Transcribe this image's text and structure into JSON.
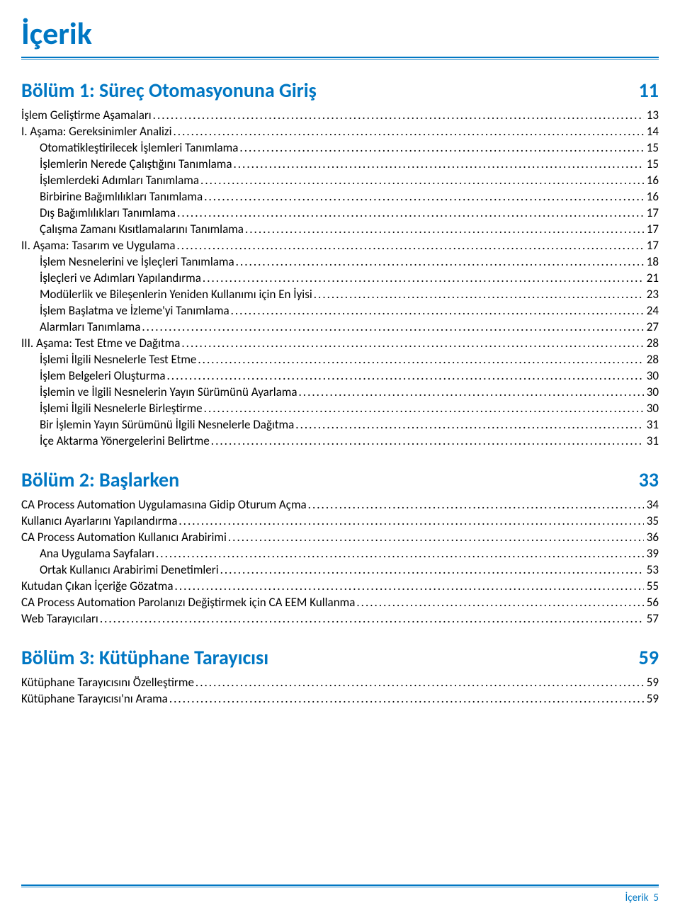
{
  "colors": {
    "accent": "#0077c3",
    "rule": "#0077c3",
    "text": "#000000"
  },
  "page_title": "İçerik",
  "footer": {
    "label": "İçerik",
    "pagenum": "5"
  },
  "chapters": [
    {
      "heading": "Bölüm 1: Süreç Otomasyonuna Giriş",
      "page": "11",
      "entries": [
        {
          "indent": 0,
          "text": "İşlem Geliştirme Aşamaları",
          "page": "13"
        },
        {
          "indent": 0,
          "text": "I. Aşama: Gereksinimler Analizi",
          "page": "14"
        },
        {
          "indent": 1,
          "text": "Otomatikleştirilecek İşlemleri Tanımlama",
          "page": "15"
        },
        {
          "indent": 1,
          "text": "İşlemlerin Nerede Çalıştığını Tanımlama",
          "page": "15"
        },
        {
          "indent": 1,
          "text": "İşlemlerdeki Adımları Tanımlama",
          "page": "16"
        },
        {
          "indent": 1,
          "text": "Birbirine Bağımlılıkları Tanımlama",
          "page": "16"
        },
        {
          "indent": 1,
          "text": "Dış Bağımlılıkları Tanımlama",
          "page": "17"
        },
        {
          "indent": 1,
          "text": "Çalışma Zamanı Kısıtlamalarını Tanımlama",
          "page": "17"
        },
        {
          "indent": 0,
          "text": "II. Aşama: Tasarım ve Uygulama",
          "page": "17"
        },
        {
          "indent": 1,
          "text": "İşlem Nesnelerini ve İşleçleri Tanımlama",
          "page": "18"
        },
        {
          "indent": 1,
          "text": "İşleçleri ve Adımları Yapılandırma",
          "page": "21"
        },
        {
          "indent": 1,
          "text": "Modülerlik ve Bileşenlerin Yeniden Kullanımı için En İyisi",
          "page": "23"
        },
        {
          "indent": 1,
          "text": "İşlem Başlatma ve İzleme'yi Tanımlama",
          "page": "24"
        },
        {
          "indent": 1,
          "text": "Alarmları Tanımlama",
          "page": "27"
        },
        {
          "indent": 0,
          "text": "III. Aşama: Test Etme ve Dağıtma",
          "page": "28"
        },
        {
          "indent": 1,
          "text": "İşlemi İlgili Nesnelerle Test Etme",
          "page": "28"
        },
        {
          "indent": 1,
          "text": "İşlem Belgeleri Oluşturma",
          "page": "30"
        },
        {
          "indent": 1,
          "text": "İşlemin ve İlgili Nesnelerin Yayın Sürümünü Ayarlama",
          "page": "30"
        },
        {
          "indent": 1,
          "text": "İşlemi İlgili Nesnelerle Birleştirme",
          "page": "30"
        },
        {
          "indent": 1,
          "text": "Bir İşlemin Yayın Sürümünü İlgili Nesnelerle Dağıtma",
          "page": "31"
        },
        {
          "indent": 1,
          "text": "İçe Aktarma Yönergelerini Belirtme",
          "page": "31"
        }
      ]
    },
    {
      "heading": "Bölüm 2: Başlarken",
      "page": "33",
      "entries": [
        {
          "indent": 0,
          "text": "CA Process Automation Uygulamasına Gidip Oturum Açma",
          "page": "34"
        },
        {
          "indent": 0,
          "text": "Kullanıcı Ayarlarını Yapılandırma",
          "page": "35"
        },
        {
          "indent": 0,
          "text": "CA Process Automation Kullanıcı Arabirimi",
          "page": "36"
        },
        {
          "indent": 1,
          "text": "Ana Uygulama Sayfaları",
          "page": "39"
        },
        {
          "indent": 1,
          "text": "Ortak Kullanıcı Arabirimi Denetimleri",
          "page": "53"
        },
        {
          "indent": 0,
          "text": "Kutudan Çıkan İçeriğe Gözatma",
          "page": "55"
        },
        {
          "indent": 0,
          "text": "CA Process Automation Parolanızı Değiştirmek için CA EEM Kullanma",
          "page": "56"
        },
        {
          "indent": 0,
          "text": "Web Tarayıcıları",
          "page": "57"
        }
      ]
    },
    {
      "heading": "Bölüm 3: Kütüphane Tarayıcısı",
      "page": "59",
      "entries": [
        {
          "indent": 0,
          "text": "Kütüphane Tarayıcısını Özelleştirme",
          "page": "59"
        },
        {
          "indent": 0,
          "text": "Kütüphane Tarayıcısı'nı Arama",
          "page": "59"
        }
      ]
    }
  ]
}
